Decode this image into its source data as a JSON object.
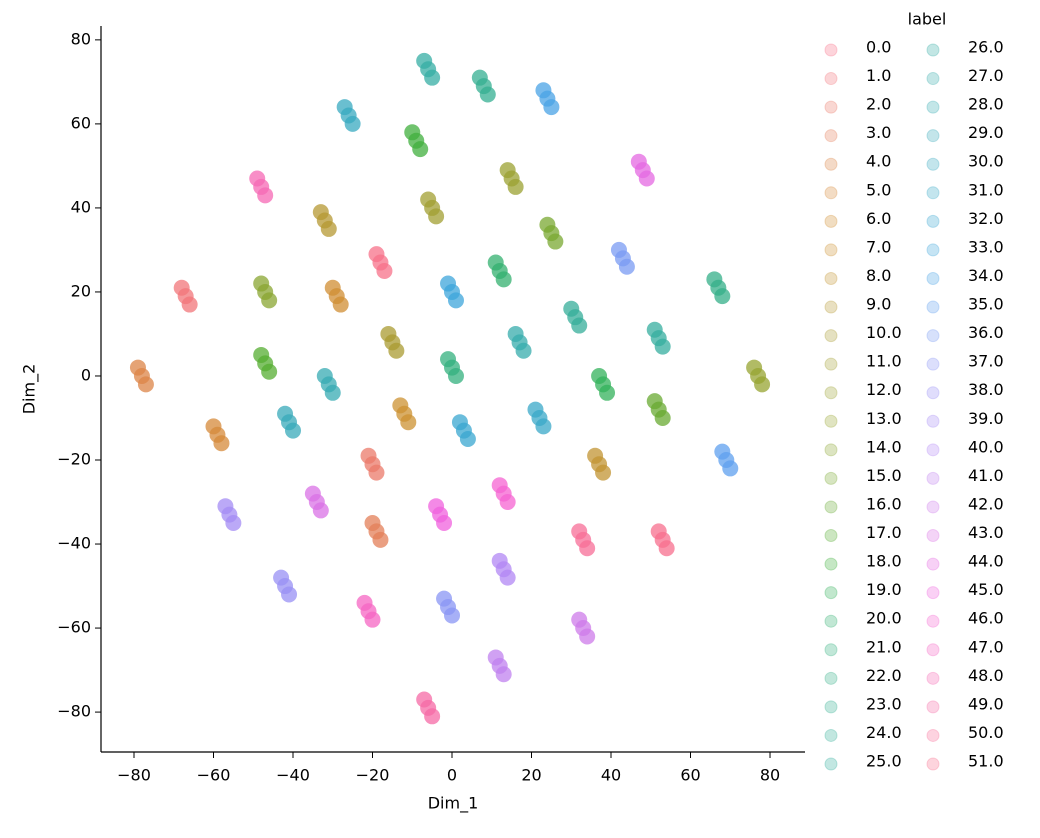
{
  "chart_data": {
    "type": "scatter",
    "xlabel": "Dim_1",
    "ylabel": "Dim_2",
    "legend_title": "label",
    "legend_position": "outside-right",
    "legend_columns": 2,
    "xlim": [
      -88.3,
      88.8
    ],
    "ylim": [
      -89.5,
      83.3
    ],
    "xticks": [
      {
        "value": -80,
        "label": "−80"
      },
      {
        "value": -60,
        "label": "−60"
      },
      {
        "value": -40,
        "label": "−40"
      },
      {
        "value": -20,
        "label": "−20"
      },
      0,
      20,
      40,
      60,
      80
    ],
    "yticks": [
      {
        "value": -80,
        "label": "−80"
      },
      {
        "value": -60,
        "label": "−60"
      },
      {
        "value": -40,
        "label": "−40"
      },
      {
        "value": -20,
        "label": "−20"
      },
      0,
      20,
      40,
      60,
      80
    ],
    "series": [
      {
        "name": "0.0",
        "color": "#f77189",
        "x": [
          -19,
          -18,
          -17
        ],
        "y": [
          29,
          27,
          25
        ]
      },
      {
        "name": "1.0",
        "color": "#f1757a",
        "x": [
          -68,
          -67,
          -66
        ],
        "y": [
          21,
          19,
          17
        ]
      },
      {
        "name": "2.0",
        "color": "#eb7a6a",
        "x": [
          -21,
          -20,
          -19
        ],
        "y": [
          -19,
          -21,
          -23
        ]
      },
      {
        "name": "3.0",
        "color": "#e37f58",
        "x": [
          -20,
          -19,
          -18
        ],
        "y": [
          -35,
          -37,
          -39
        ]
      },
      {
        "name": "4.0",
        "color": "#dc8447",
        "x": [
          -79,
          -78,
          -77
        ],
        "y": [
          2,
          0,
          -2
        ]
      },
      {
        "name": "5.0",
        "color": "#d68a3a",
        "x": [
          -60,
          -59,
          -58
        ],
        "y": [
          -12,
          -14,
          -16
        ]
      },
      {
        "name": "6.0",
        "color": "#d08e33",
        "x": [
          -30,
          -29,
          -28
        ],
        "y": [
          21,
          19,
          17
        ]
      },
      {
        "name": "7.0",
        "color": "#cc9132",
        "x": [
          -13,
          -12,
          -11
        ],
        "y": [
          -7,
          -9,
          -11
        ]
      },
      {
        "name": "8.0",
        "color": "#c29433",
        "x": [
          36,
          37,
          38
        ],
        "y": [
          -19,
          -21,
          -23
        ]
      },
      {
        "name": "9.0",
        "color": "#b59833",
        "x": [
          -33,
          -32,
          -31
        ],
        "y": [
          39,
          37,
          35
        ]
      },
      {
        "name": "10.0",
        "color": "#aa9b32",
        "x": [
          -16,
          -15,
          -14
        ],
        "y": [
          10,
          8,
          6
        ]
      },
      {
        "name": "11.0",
        "color": "#a19f31",
        "x": [
          -6,
          -5,
          -4
        ],
        "y": [
          42,
          40,
          38
        ]
      },
      {
        "name": "12.0",
        "color": "#9ba231",
        "x": [
          14,
          15,
          16
        ],
        "y": [
          49,
          47,
          45
        ]
      },
      {
        "name": "13.0",
        "color": "#97a431",
        "x": [
          76,
          77,
          78
        ],
        "y": [
          2,
          0,
          -2
        ]
      },
      {
        "name": "14.0",
        "color": "#8aa631",
        "x": [
          -48,
          -47,
          -46
        ],
        "y": [
          22,
          20,
          18
        ]
      },
      {
        "name": "15.0",
        "color": "#7aa831",
        "x": [
          24,
          25,
          26
        ],
        "y": [
          36,
          34,
          32
        ]
      },
      {
        "name": "16.0",
        "color": "#68aa31",
        "x": [
          51,
          52,
          53
        ],
        "y": [
          -6,
          -8,
          -10
        ]
      },
      {
        "name": "17.0",
        "color": "#55ad31",
        "x": [
          -48,
          -47,
          -46
        ],
        "y": [
          5,
          3,
          1
        ]
      },
      {
        "name": "18.0",
        "color": "#40af3d",
        "x": [
          -10,
          -9,
          -8
        ],
        "y": [
          58,
          56,
          54
        ]
      },
      {
        "name": "19.0",
        "color": "#33b15b",
        "x": [
          37,
          38,
          39
        ],
        "y": [
          0,
          -2,
          -4
        ]
      },
      {
        "name": "20.0",
        "color": "#33b06f",
        "x": [
          11,
          12,
          13
        ],
        "y": [
          27,
          25,
          23
        ]
      },
      {
        "name": "21.0",
        "color": "#33b07d",
        "x": [
          -1,
          0,
          1
        ],
        "y": [
          4,
          2,
          0
        ]
      },
      {
        "name": "22.0",
        "color": "#34af88",
        "x": [
          66,
          67,
          68
        ],
        "y": [
          23,
          21,
          19
        ]
      },
      {
        "name": "23.0",
        "color": "#34af92",
        "x": [
          7,
          8,
          9
        ],
        "y": [
          71,
          69,
          67
        ]
      },
      {
        "name": "24.0",
        "color": "#35ae99",
        "x": [
          30,
          31,
          32
        ],
        "y": [
          16,
          14,
          12
        ]
      },
      {
        "name": "25.0",
        "color": "#35ae9f",
        "x": [
          51,
          52,
          53
        ],
        "y": [
          11,
          9,
          7
        ]
      },
      {
        "name": "26.0",
        "color": "#36ada4",
        "x": [
          -7,
          -6,
          -5
        ],
        "y": [
          75,
          73,
          71
        ]
      },
      {
        "name": "27.0",
        "color": "#37acac",
        "x": [
          16,
          17,
          18
        ],
        "y": [
          10,
          8,
          6
        ]
      },
      {
        "name": "28.0",
        "color": "#37abb3",
        "x": [
          -32,
          -31,
          -30
        ],
        "y": [
          0,
          -2,
          -4
        ]
      },
      {
        "name": "29.0",
        "color": "#38aab9",
        "x": [
          -42,
          -41,
          -40
        ],
        "y": [
          -9,
          -11,
          -13
        ]
      },
      {
        "name": "30.0",
        "color": "#38a9c0",
        "x": [
          -27,
          -26,
          -25
        ],
        "y": [
          64,
          62,
          60
        ]
      },
      {
        "name": "31.0",
        "color": "#39a8c8",
        "x": [
          21,
          22,
          23
        ],
        "y": [
          -8,
          -10,
          -12
        ]
      },
      {
        "name": "32.0",
        "color": "#39a7d0",
        "x": [
          2,
          3,
          4
        ],
        "y": [
          -11,
          -13,
          -15
        ]
      },
      {
        "name": "33.0",
        "color": "#3ea5db",
        "x": [
          -1,
          0,
          1
        ],
        "y": [
          22,
          20,
          18
        ]
      },
      {
        "name": "34.0",
        "color": "#4aa3e6",
        "x": [
          23,
          24,
          25
        ],
        "y": [
          68,
          66,
          64
        ]
      },
      {
        "name": "35.0",
        "color": "#5fa0ef",
        "x": [
          68,
          69,
          70
        ],
        "y": [
          -18,
          -20,
          -22
        ]
      },
      {
        "name": "36.0",
        "color": "#7a9bf3",
        "x": [
          42,
          43,
          44
        ],
        "y": [
          30,
          28,
          26
        ]
      },
      {
        "name": "37.0",
        "color": "#8a95f4",
        "x": [
          -2,
          -1,
          0
        ],
        "y": [
          -53,
          -55,
          -57
        ]
      },
      {
        "name": "38.0",
        "color": "#9890f4",
        "x": [
          -43,
          -42,
          -41
        ],
        "y": [
          -48,
          -50,
          -52
        ]
      },
      {
        "name": "39.0",
        "color": "#a48cf4",
        "x": [
          -57,
          -56,
          -55
        ],
        "y": [
          -31,
          -33,
          -35
        ]
      },
      {
        "name": "40.0",
        "color": "#b287f4",
        "x": [
          12,
          13,
          14
        ],
        "y": [
          -44,
          -46,
          -48
        ]
      },
      {
        "name": "41.0",
        "color": "#c081ef",
        "x": [
          11,
          12,
          13
        ],
        "y": [
          -67,
          -69,
          -71
        ]
      },
      {
        "name": "42.0",
        "color": "#cd7bea",
        "x": [
          32,
          33,
          34
        ],
        "y": [
          -58,
          -60,
          -62
        ]
      },
      {
        "name": "43.0",
        "color": "#d972e5",
        "x": [
          -35,
          -34,
          -33
        ],
        "y": [
          -28,
          -30,
          -32
        ]
      },
      {
        "name": "44.0",
        "color": "#e468e2",
        "x": [
          47,
          48,
          49
        ],
        "y": [
          51,
          49,
          47
        ]
      },
      {
        "name": "45.0",
        "color": "#f062de",
        "x": [
          -4,
          -3,
          -2
        ],
        "y": [
          -31,
          -33,
          -35
        ]
      },
      {
        "name": "46.0",
        "color": "#f563d2",
        "x": [
          12,
          13,
          14
        ],
        "y": [
          -26,
          -28,
          -30
        ]
      },
      {
        "name": "47.0",
        "color": "#f665c3",
        "x": [
          -22,
          -21,
          -20
        ],
        "y": [
          -54,
          -56,
          -58
        ]
      },
      {
        "name": "48.0",
        "color": "#f668b4",
        "x": [
          -49,
          -48,
          -47
        ],
        "y": [
          47,
          45,
          43
        ]
      },
      {
        "name": "49.0",
        "color": "#f66aa6",
        "x": [
          -7,
          -6,
          -5
        ],
        "y": [
          -77,
          -79,
          -81
        ]
      },
      {
        "name": "50.0",
        "color": "#f76d97",
        "x": [
          32,
          33,
          34
        ],
        "y": [
          -37,
          -39,
          -41
        ]
      },
      {
        "name": "51.0",
        "color": "#f76f8e",
        "x": [
          52,
          53,
          54
        ],
        "y": [
          -37,
          -39,
          -41
        ]
      }
    ]
  }
}
